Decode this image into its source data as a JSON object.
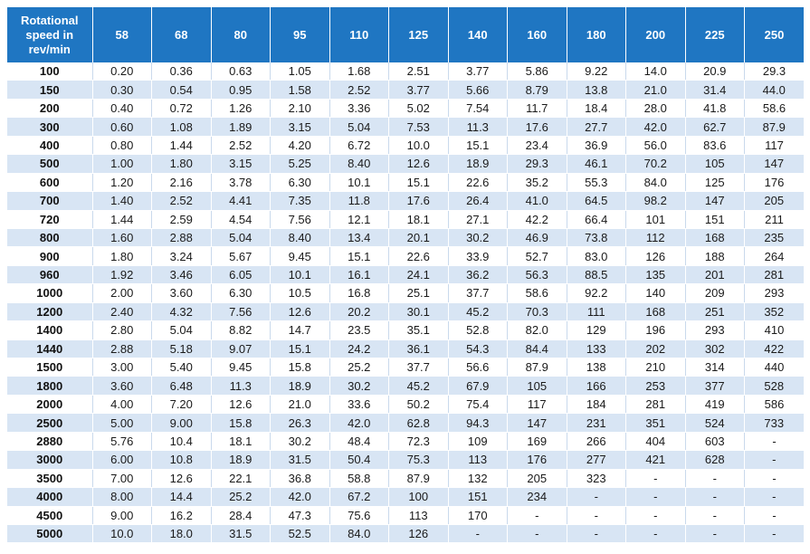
{
  "table": {
    "corner_header": [
      "Rotational",
      "speed in",
      "rev/min"
    ],
    "columns": [
      "58",
      "68",
      "80",
      "95",
      "110",
      "125",
      "140",
      "160",
      "180",
      "200",
      "225",
      "250"
    ],
    "rows": [
      {
        "speed": "100",
        "values": [
          "0.20",
          "0.36",
          "0.63",
          "1.05",
          "1.68",
          "2.51",
          "3.77",
          "5.86",
          "9.22",
          "14.0",
          "20.9",
          "29.3"
        ]
      },
      {
        "speed": "150",
        "values": [
          "0.30",
          "0.54",
          "0.95",
          "1.58",
          "2.52",
          "3.77",
          "5.66",
          "8.79",
          "13.8",
          "21.0",
          "31.4",
          "44.0"
        ]
      },
      {
        "speed": "200",
        "values": [
          "0.40",
          "0.72",
          "1.26",
          "2.10",
          "3.36",
          "5.02",
          "7.54",
          "11.7",
          "18.4",
          "28.0",
          "41.8",
          "58.6"
        ]
      },
      {
        "speed": "300",
        "values": [
          "0.60",
          "1.08",
          "1.89",
          "3.15",
          "5.04",
          "7.53",
          "11.3",
          "17.6",
          "27.7",
          "42.0",
          "62.7",
          "87.9"
        ]
      },
      {
        "speed": "400",
        "values": [
          "0.80",
          "1.44",
          "2.52",
          "4.20",
          "6.72",
          "10.0",
          "15.1",
          "23.4",
          "36.9",
          "56.0",
          "83.6",
          "117"
        ]
      },
      {
        "speed": "500",
        "values": [
          "1.00",
          "1.80",
          "3.15",
          "5.25",
          "8.40",
          "12.6",
          "18.9",
          "29.3",
          "46.1",
          "70.2",
          "105",
          "147"
        ]
      },
      {
        "speed": "600",
        "values": [
          "1.20",
          "2.16",
          "3.78",
          "6.30",
          "10.1",
          "15.1",
          "22.6",
          "35.2",
          "55.3",
          "84.0",
          "125",
          "176"
        ]
      },
      {
        "speed": "700",
        "values": [
          "1.40",
          "2.52",
          "4.41",
          "7.35",
          "11.8",
          "17.6",
          "26.4",
          "41.0",
          "64.5",
          "98.2",
          "147",
          "205"
        ]
      },
      {
        "speed": "720",
        "values": [
          "1.44",
          "2.59",
          "4.54",
          "7.56",
          "12.1",
          "18.1",
          "27.1",
          "42.2",
          "66.4",
          "101",
          "151",
          "211"
        ]
      },
      {
        "speed": "800",
        "values": [
          "1.60",
          "2.88",
          "5.04",
          "8.40",
          "13.4",
          "20.1",
          "30.2",
          "46.9",
          "73.8",
          "112",
          "168",
          "235"
        ]
      },
      {
        "speed": "900",
        "values": [
          "1.80",
          "3.24",
          "5.67",
          "9.45",
          "15.1",
          "22.6",
          "33.9",
          "52.7",
          "83.0",
          "126",
          "188",
          "264"
        ]
      },
      {
        "speed": "960",
        "values": [
          "1.92",
          "3.46",
          "6.05",
          "10.1",
          "16.1",
          "24.1",
          "36.2",
          "56.3",
          "88.5",
          "135",
          "201",
          "281"
        ]
      },
      {
        "speed": "1000",
        "values": [
          "2.00",
          "3.60",
          "6.30",
          "10.5",
          "16.8",
          "25.1",
          "37.7",
          "58.6",
          "92.2",
          "140",
          "209",
          "293"
        ]
      },
      {
        "speed": "1200",
        "values": [
          "2.40",
          "4.32",
          "7.56",
          "12.6",
          "20.2",
          "30.1",
          "45.2",
          "70.3",
          "111",
          "168",
          "251",
          "352"
        ]
      },
      {
        "speed": "1400",
        "values": [
          "2.80",
          "5.04",
          "8.82",
          "14.7",
          "23.5",
          "35.1",
          "52.8",
          "82.0",
          "129",
          "196",
          "293",
          "410"
        ]
      },
      {
        "speed": "1440",
        "values": [
          "2.88",
          "5.18",
          "9.07",
          "15.1",
          "24.2",
          "36.1",
          "54.3",
          "84.4",
          "133",
          "202",
          "302",
          "422"
        ]
      },
      {
        "speed": "1500",
        "values": [
          "3.00",
          "5.40",
          "9.45",
          "15.8",
          "25.2",
          "37.7",
          "56.6",
          "87.9",
          "138",
          "210",
          "314",
          "440"
        ]
      },
      {
        "speed": "1800",
        "values": [
          "3.60",
          "6.48",
          "11.3",
          "18.9",
          "30.2",
          "45.2",
          "67.9",
          "105",
          "166",
          "253",
          "377",
          "528"
        ]
      },
      {
        "speed": "2000",
        "values": [
          "4.00",
          "7.20",
          "12.6",
          "21.0",
          "33.6",
          "50.2",
          "75.4",
          "117",
          "184",
          "281",
          "419",
          "586"
        ]
      },
      {
        "speed": "2500",
        "values": [
          "5.00",
          "9.00",
          "15.8",
          "26.3",
          "42.0",
          "62.8",
          "94.3",
          "147",
          "231",
          "351",
          "524",
          "733"
        ]
      },
      {
        "speed": "2880",
        "values": [
          "5.76",
          "10.4",
          "18.1",
          "30.2",
          "48.4",
          "72.3",
          "109",
          "169",
          "266",
          "404",
          "603",
          "-"
        ]
      },
      {
        "speed": "3000",
        "values": [
          "6.00",
          "10.8",
          "18.9",
          "31.5",
          "50.4",
          "75.3",
          "113",
          "176",
          "277",
          "421",
          "628",
          "-"
        ]
      },
      {
        "speed": "3500",
        "values": [
          "7.00",
          "12.6",
          "22.1",
          "36.8",
          "58.8",
          "87.9",
          "132",
          "205",
          "323",
          "-",
          "-",
          "-"
        ]
      },
      {
        "speed": "4000",
        "values": [
          "8.00",
          "14.4",
          "25.2",
          "42.0",
          "67.2",
          "100",
          "151",
          "234",
          "-",
          "-",
          "-",
          "-"
        ]
      },
      {
        "speed": "4500",
        "values": [
          "9.00",
          "16.2",
          "28.4",
          "47.3",
          "75.6",
          "113",
          "170",
          "-",
          "-",
          "-",
          "-",
          "-"
        ]
      },
      {
        "speed": "5000",
        "values": [
          "10.0",
          "18.0",
          "31.5",
          "52.5",
          "84.0",
          "126",
          "-",
          "-",
          "-",
          "-",
          "-",
          "-"
        ]
      }
    ]
  }
}
